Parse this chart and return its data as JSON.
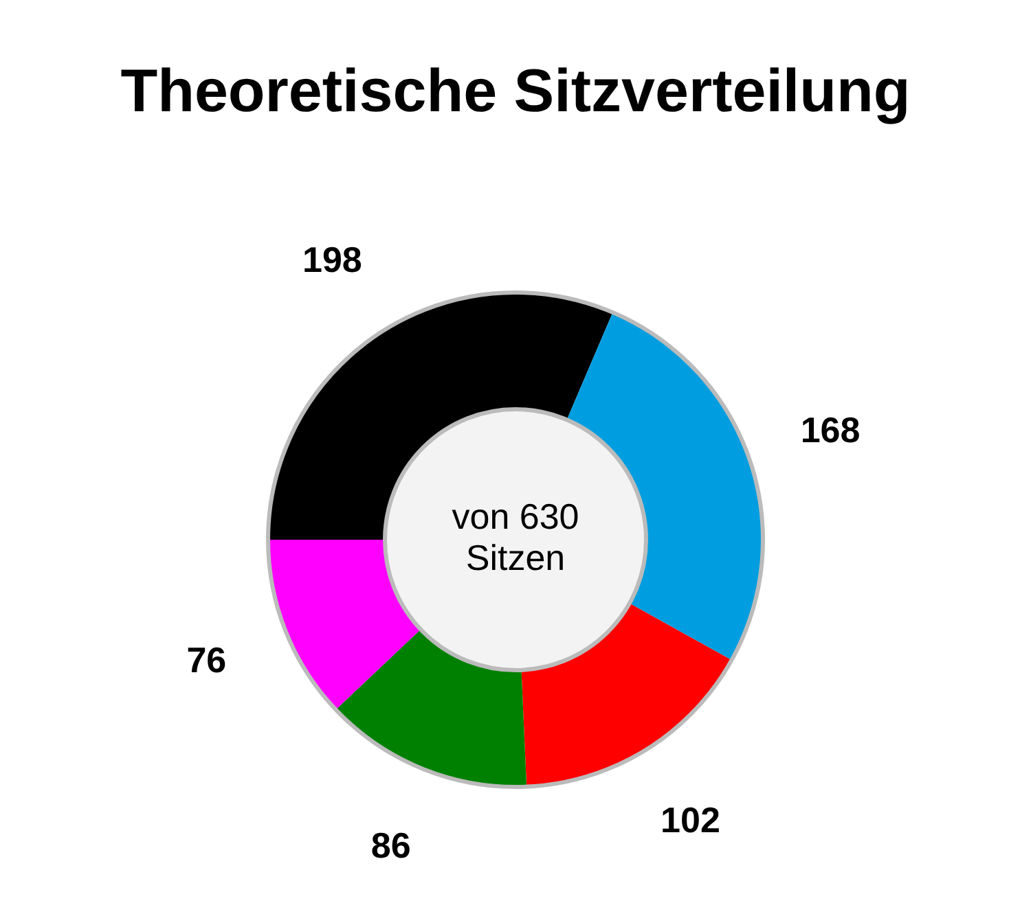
{
  "chart_data": {
    "type": "donut",
    "title": "Theoretische Sitzverteilung",
    "categories": [
      null,
      null,
      null,
      null,
      null
    ],
    "values": [
      198,
      168,
      102,
      86,
      76
    ],
    "colors": [
      "#000000",
      "#009ee0",
      "#ff0000",
      "#008000",
      "#ff00ff"
    ],
    "data_labels": true,
    "legend": false,
    "annotations": [
      "von 630 Sitzen"
    ]
  }
}
